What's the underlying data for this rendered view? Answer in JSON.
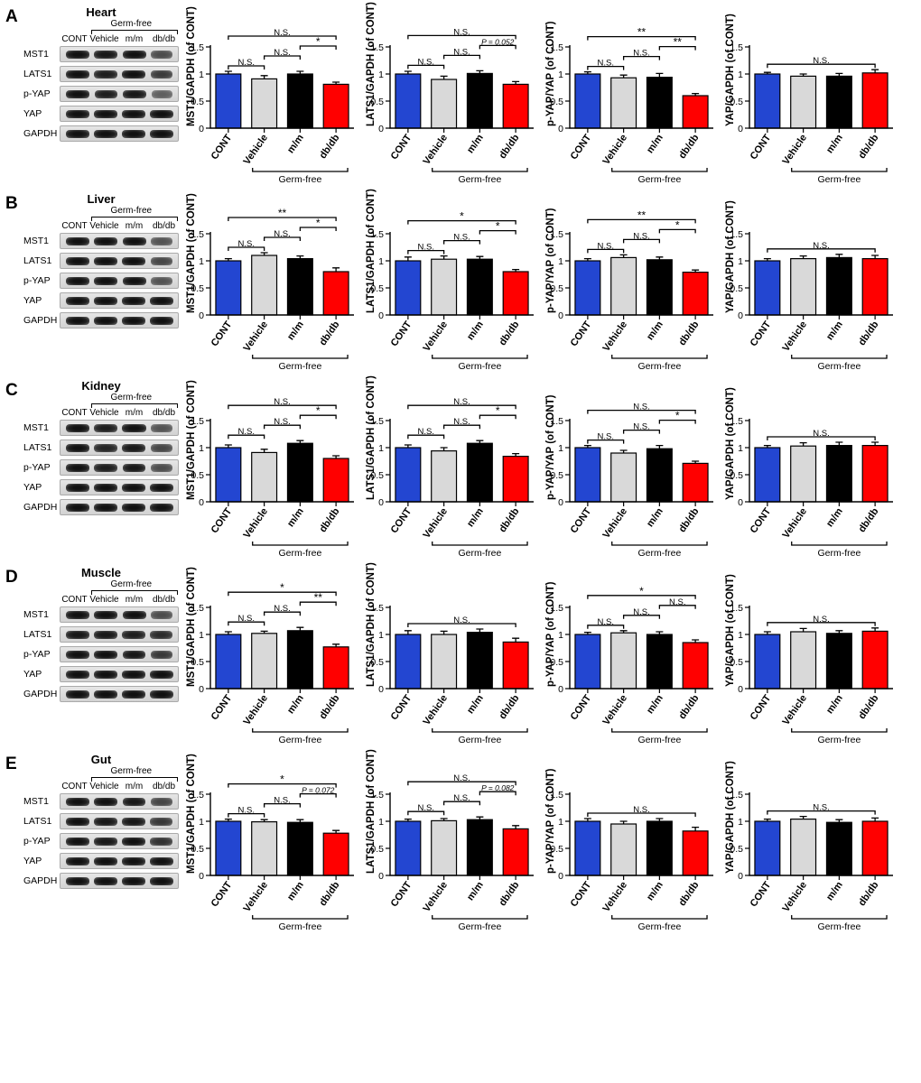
{
  "colors": {
    "CONT": "#2346d1",
    "Vehicle": "#d9d9d9",
    "mm": "#000000",
    "dbdb": "#ff0000"
  },
  "groups": [
    "CONT",
    "Vehicle",
    "m/m",
    "db/db"
  ],
  "group_keys": [
    "CONT",
    "Vehicle",
    "mm",
    "dbdb"
  ],
  "blot_proteins": [
    "MST1",
    "LATS1",
    "p-YAP",
    "YAP",
    "GAPDH"
  ],
  "blot_germfree_label": "Germ-free",
  "germfree_under_label": "Germ-free",
  "chart_ylabels": [
    "MST1/GAPDH (of CONT)",
    "LATS1/GAPDH (of CONT)",
    "p-YAP/YAP (of CONT)",
    "YAP/GAPDH (of CONT)"
  ],
  "y_axis": {
    "ylim": [
      0,
      1.5
    ],
    "ticks": [
      0,
      0.5,
      1.0,
      1.5
    ]
  },
  "bar_width": 0.7,
  "tissues": [
    {
      "label": "A",
      "title": "Heart",
      "band_intensity": [
        [
          1.0,
          0.95,
          1.0,
          0.55
        ],
        [
          1.0,
          0.9,
          1.0,
          0.68
        ],
        [
          1.0,
          0.9,
          0.95,
          0.4
        ],
        [
          1.0,
          1.0,
          1.0,
          1.0
        ],
        [
          1.0,
          1.0,
          1.0,
          1.0
        ]
      ],
      "charts": [
        {
          "values": [
            1.0,
            0.91,
            1.0,
            0.81
          ],
          "errs": [
            0.05,
            0.06,
            0.05,
            0.04
          ],
          "sigs": [
            [
              "CONT",
              "Vehicle",
              "N.S."
            ],
            [
              "Vehicle",
              "mm",
              "N.S."
            ],
            [
              "mm",
              "dbdb",
              "*"
            ],
            [
              "CONT",
              "dbdb",
              "N.S."
            ]
          ]
        },
        {
          "values": [
            1.0,
            0.9,
            1.01,
            0.81
          ],
          "errs": [
            0.05,
            0.06,
            0.05,
            0.05
          ],
          "sigs": [
            [
              "CONT",
              "Vehicle",
              "N.S."
            ],
            [
              "Vehicle",
              "mm",
              "N.S."
            ],
            [
              "mm",
              "dbdb",
              "P = 0.052"
            ],
            [
              "CONT",
              "dbdb",
              "N.S."
            ]
          ]
        },
        {
          "values": [
            1.0,
            0.93,
            0.94,
            0.6
          ],
          "errs": [
            0.04,
            0.05,
            0.07,
            0.04
          ],
          "sigs": [
            [
              "CONT",
              "Vehicle",
              "N.S."
            ],
            [
              "Vehicle",
              "mm",
              "N.S."
            ],
            [
              "mm",
              "dbdb",
              "**"
            ],
            [
              "CONT",
              "dbdb",
              "**"
            ]
          ]
        },
        {
          "values": [
            1.0,
            0.96,
            0.96,
            1.02
          ],
          "errs": [
            0.03,
            0.04,
            0.05,
            0.06
          ],
          "sigs": [
            [
              "CONT",
              "dbdb",
              "N.S."
            ]
          ]
        }
      ]
    },
    {
      "label": "B",
      "title": "Liver",
      "band_intensity": [
        [
          1.0,
          1.05,
          1.0,
          0.5
        ],
        [
          1.0,
          1.0,
          1.0,
          0.6
        ],
        [
          1.0,
          1.1,
          1.0,
          0.5
        ],
        [
          1.0,
          1.0,
          1.0,
          1.0
        ],
        [
          1.0,
          1.0,
          1.0,
          1.0
        ]
      ],
      "charts": [
        {
          "values": [
            1.0,
            1.1,
            1.04,
            0.8
          ],
          "errs": [
            0.04,
            0.05,
            0.05,
            0.07
          ],
          "sigs": [
            [
              "CONT",
              "Vehicle",
              "N.S."
            ],
            [
              "Vehicle",
              "mm",
              "N.S."
            ],
            [
              "mm",
              "dbdb",
              "*"
            ],
            [
              "CONT",
              "dbdb",
              "**"
            ]
          ]
        },
        {
          "values": [
            1.0,
            1.03,
            1.03,
            0.8
          ],
          "errs": [
            0.07,
            0.06,
            0.05,
            0.04
          ],
          "sigs": [
            [
              "CONT",
              "Vehicle",
              "N.S."
            ],
            [
              "Vehicle",
              "mm",
              "N.S."
            ],
            [
              "mm",
              "dbdb",
              "*"
            ],
            [
              "CONT",
              "dbdb",
              "*"
            ]
          ]
        },
        {
          "values": [
            1.0,
            1.06,
            1.02,
            0.79
          ],
          "errs": [
            0.04,
            0.05,
            0.05,
            0.04
          ],
          "sigs": [
            [
              "CONT",
              "Vehicle",
              "N.S."
            ],
            [
              "Vehicle",
              "mm",
              "N.S."
            ],
            [
              "mm",
              "dbdb",
              "*"
            ],
            [
              "CONT",
              "dbdb",
              "**"
            ]
          ]
        },
        {
          "values": [
            1.0,
            1.04,
            1.06,
            1.04
          ],
          "errs": [
            0.04,
            0.05,
            0.06,
            0.06
          ],
          "sigs": [
            [
              "CONT",
              "dbdb",
              "N.S."
            ]
          ]
        }
      ]
    },
    {
      "label": "C",
      "title": "Kidney",
      "band_intensity": [
        [
          1.0,
          0.9,
          1.05,
          0.5
        ],
        [
          1.0,
          0.85,
          0.95,
          0.6
        ],
        [
          1.0,
          0.9,
          0.95,
          0.55
        ],
        [
          1.0,
          1.0,
          1.0,
          1.0
        ],
        [
          1.0,
          1.0,
          1.0,
          1.0
        ]
      ],
      "charts": [
        {
          "values": [
            1.0,
            0.91,
            1.08,
            0.8
          ],
          "errs": [
            0.05,
            0.06,
            0.05,
            0.05
          ],
          "sigs": [
            [
              "CONT",
              "Vehicle",
              "N.S."
            ],
            [
              "Vehicle",
              "mm",
              "N.S."
            ],
            [
              "mm",
              "dbdb",
              "*"
            ],
            [
              "CONT",
              "dbdb",
              "N.S."
            ]
          ]
        },
        {
          "values": [
            1.0,
            0.94,
            1.08,
            0.84
          ],
          "errs": [
            0.05,
            0.06,
            0.05,
            0.05
          ],
          "sigs": [
            [
              "CONT",
              "Vehicle",
              "N.S."
            ],
            [
              "Vehicle",
              "mm",
              "N.S."
            ],
            [
              "mm",
              "dbdb",
              "*"
            ],
            [
              "CONT",
              "dbdb",
              "N.S."
            ]
          ]
        },
        {
          "values": [
            1.0,
            0.9,
            0.98,
            0.71
          ],
          "errs": [
            0.04,
            0.05,
            0.06,
            0.04
          ],
          "sigs": [
            [
              "CONT",
              "Vehicle",
              "N.S."
            ],
            [
              "Vehicle",
              "mm",
              "N.S."
            ],
            [
              "mm",
              "dbdb",
              "*"
            ],
            [
              "CONT",
              "dbdb",
              "N.S."
            ]
          ]
        },
        {
          "values": [
            1.0,
            1.03,
            1.04,
            1.04
          ],
          "errs": [
            0.04,
            0.06,
            0.06,
            0.06
          ],
          "sigs": [
            [
              "CONT",
              "dbdb",
              "N.S."
            ]
          ]
        }
      ]
    },
    {
      "label": "D",
      "title": "Muscle",
      "band_intensity": [
        [
          1.0,
          1.0,
          1.05,
          0.55
        ],
        [
          0.95,
          0.95,
          0.9,
          0.8
        ],
        [
          1.0,
          1.1,
          0.95,
          0.7
        ],
        [
          1.0,
          1.0,
          1.0,
          1.0
        ],
        [
          1.0,
          1.0,
          1.0,
          1.0
        ]
      ],
      "charts": [
        {
          "values": [
            1.0,
            1.02,
            1.07,
            0.77
          ],
          "errs": [
            0.05,
            0.04,
            0.06,
            0.05
          ],
          "sigs": [
            [
              "CONT",
              "Vehicle",
              "N.S."
            ],
            [
              "Vehicle",
              "mm",
              "N.S."
            ],
            [
              "mm",
              "dbdb",
              "**"
            ],
            [
              "CONT",
              "dbdb",
              "*"
            ]
          ]
        },
        {
          "values": [
            1.0,
            1.0,
            1.04,
            0.86
          ],
          "errs": [
            0.07,
            0.06,
            0.06,
            0.07
          ],
          "sigs": [
            [
              "CONT",
              "dbdb",
              "N.S."
            ]
          ]
        },
        {
          "values": [
            1.0,
            1.03,
            1.0,
            0.85
          ],
          "errs": [
            0.04,
            0.04,
            0.05,
            0.05
          ],
          "sigs": [
            [
              "CONT",
              "Vehicle",
              "N.S."
            ],
            [
              "Vehicle",
              "mm",
              "N.S."
            ],
            [
              "mm",
              "dbdb",
              "N.S."
            ],
            [
              "CONT",
              "dbdb",
              "*"
            ]
          ]
        },
        {
          "values": [
            1.0,
            1.05,
            1.02,
            1.06
          ],
          "errs": [
            0.05,
            0.06,
            0.05,
            0.06
          ],
          "sigs": [
            [
              "CONT",
              "dbdb",
              "N.S."
            ]
          ]
        }
      ]
    },
    {
      "label": "E",
      "title": "Gut",
      "band_intensity": [
        [
          1.0,
          1.0,
          0.95,
          0.6
        ],
        [
          1.0,
          0.95,
          0.95,
          0.7
        ],
        [
          1.0,
          0.95,
          1.0,
          0.75
        ],
        [
          1.0,
          1.0,
          1.0,
          1.0
        ],
        [
          1.0,
          1.0,
          1.0,
          1.0
        ]
      ],
      "charts": [
        {
          "values": [
            1.0,
            0.99,
            0.98,
            0.78
          ],
          "errs": [
            0.04,
            0.04,
            0.05,
            0.05
          ],
          "sigs": [
            [
              "CONT",
              "Vehicle",
              "N.S."
            ],
            [
              "Vehicle",
              "mm",
              "N.S."
            ],
            [
              "mm",
              "dbdb",
              "P = 0.072"
            ],
            [
              "CONT",
              "dbdb",
              "*"
            ]
          ]
        },
        {
          "values": [
            1.0,
            1.01,
            1.03,
            0.86
          ],
          "errs": [
            0.04,
            0.04,
            0.05,
            0.06
          ],
          "sigs": [
            [
              "CONT",
              "Vehicle",
              "N.S."
            ],
            [
              "Vehicle",
              "mm",
              "N.S."
            ],
            [
              "mm",
              "dbdb",
              "P = 0.082"
            ],
            [
              "CONT",
              "dbdb",
              "N.S."
            ]
          ]
        },
        {
          "values": [
            1.0,
            0.95,
            1.0,
            0.82
          ],
          "errs": [
            0.05,
            0.05,
            0.05,
            0.07
          ],
          "sigs": [
            [
              "CONT",
              "dbdb",
              "N.S."
            ]
          ]
        },
        {
          "values": [
            1.0,
            1.04,
            0.98,
            1.0
          ],
          "errs": [
            0.04,
            0.05,
            0.05,
            0.06
          ],
          "sigs": [
            [
              "CONT",
              "dbdb",
              "N.S."
            ]
          ]
        }
      ]
    }
  ]
}
